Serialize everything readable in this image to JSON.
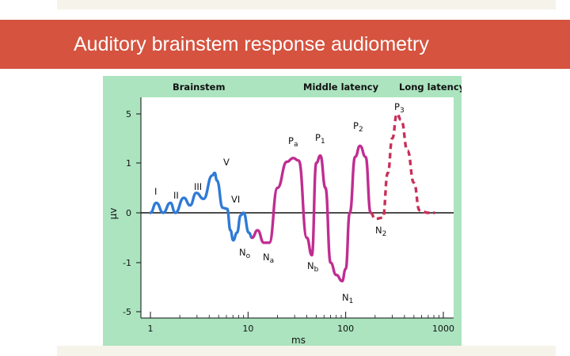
{
  "slide": {
    "title": "Auditory brainstem response audiometry"
  },
  "colors": {
    "title_bar": "#d5533f",
    "panel_background": "#abe4bf",
    "plot_background": "#ffffff",
    "brainstem_series": "#2f7ad6",
    "middle_latency_series": "#c02d91",
    "long_latency_series": "#c8305a"
  },
  "chart_data": {
    "type": "line",
    "title": "",
    "xlabel": "ms",
    "ylabel": "µv",
    "x_scale": "log",
    "xlim": [
      1,
      1000
    ],
    "ylim": [
      -5,
      5
    ],
    "y_scale": "nonlinear (ticks -5, -1, 0, 1, 5 equally spaced)",
    "x_ticks": [
      "1",
      "10",
      "100",
      "1000"
    ],
    "y_ticks": [
      "5",
      "1",
      "0",
      "-1",
      "-5"
    ],
    "grid": false,
    "section_headers": [
      "Brainstem",
      "Middle latency",
      "Long latency"
    ],
    "series": [
      {
        "segment": "Brainstem",
        "line_style": "solid",
        "points": [
          [
            1.0,
            0.0
          ],
          [
            1.15,
            0.2
          ],
          [
            1.35,
            0.0
          ],
          [
            1.6,
            0.2
          ],
          [
            1.8,
            0.0
          ],
          [
            2.2,
            0.3
          ],
          [
            2.55,
            0.15
          ],
          [
            2.95,
            0.4
          ],
          [
            3.5,
            0.28
          ],
          [
            4.3,
            0.75
          ],
          [
            4.55,
            0.8
          ],
          [
            4.8,
            0.65
          ],
          [
            5.5,
            0.1
          ],
          [
            6.1,
            0.08
          ],
          [
            6.6,
            -0.35
          ],
          [
            7.05,
            -0.55
          ],
          [
            7.7,
            -0.4
          ],
          [
            8.4,
            -0.05
          ],
          [
            9.0,
            0.0
          ],
          [
            10.2,
            -0.4
          ],
          [
            11.0,
            -0.5
          ]
        ]
      },
      {
        "segment": "Middle latency",
        "line_style": "solid",
        "points": [
          [
            11.0,
            -0.5
          ],
          [
            12.5,
            -0.35
          ],
          [
            14.5,
            -0.6
          ],
          [
            16.5,
            -0.6
          ],
          [
            20.0,
            0.5
          ],
          [
            25.0,
            1.1
          ],
          [
            29.0,
            1.4
          ],
          [
            33.0,
            1.2
          ],
          [
            40.0,
            -0.5
          ],
          [
            45.0,
            -0.85
          ],
          [
            50.0,
            1.0
          ],
          [
            55.0,
            1.6
          ],
          [
            62.0,
            0.5
          ],
          [
            70.0,
            -1.0
          ],
          [
            80.0,
            -2.0
          ],
          [
            92.0,
            -2.5
          ],
          [
            100.0,
            -1.5
          ],
          [
            110.0,
            0.0
          ],
          [
            125.0,
            1.5
          ],
          [
            140.0,
            2.4
          ],
          [
            160.0,
            1.5
          ],
          [
            180.0,
            0.0
          ]
        ]
      },
      {
        "segment": "Long latency",
        "line_style": "dashed",
        "points": [
          [
            180.0,
            0.0
          ],
          [
            200.0,
            -0.12
          ],
          [
            240.0,
            -0.1
          ],
          [
            270.0,
            0.8
          ],
          [
            300.0,
            3.0
          ],
          [
            335.0,
            5.0
          ],
          [
            370.0,
            4.5
          ],
          [
            430.0,
            2.0
          ],
          [
            500.0,
            0.6
          ],
          [
            570.0,
            0.05
          ],
          [
            700.0,
            0.0
          ],
          [
            820.0,
            0.0
          ]
        ]
      }
    ],
    "annotations": [
      {
        "text": "I",
        "sub": ""
      },
      {
        "text": "II",
        "sub": ""
      },
      {
        "text": "III",
        "sub": ""
      },
      {
        "text": "V",
        "sub": ""
      },
      {
        "text": "VI",
        "sub": ""
      },
      {
        "text": "N",
        "sub": "o"
      },
      {
        "text": "N",
        "sub": "a"
      },
      {
        "text": "P",
        "sub": "a"
      },
      {
        "text": "P",
        "sub": "1"
      },
      {
        "text": "N",
        "sub": "b"
      },
      {
        "text": "N",
        "sub": "1"
      },
      {
        "text": "P",
        "sub": "2"
      },
      {
        "text": "N",
        "sub": "2"
      },
      {
        "text": "P",
        "sub": "3"
      }
    ]
  }
}
